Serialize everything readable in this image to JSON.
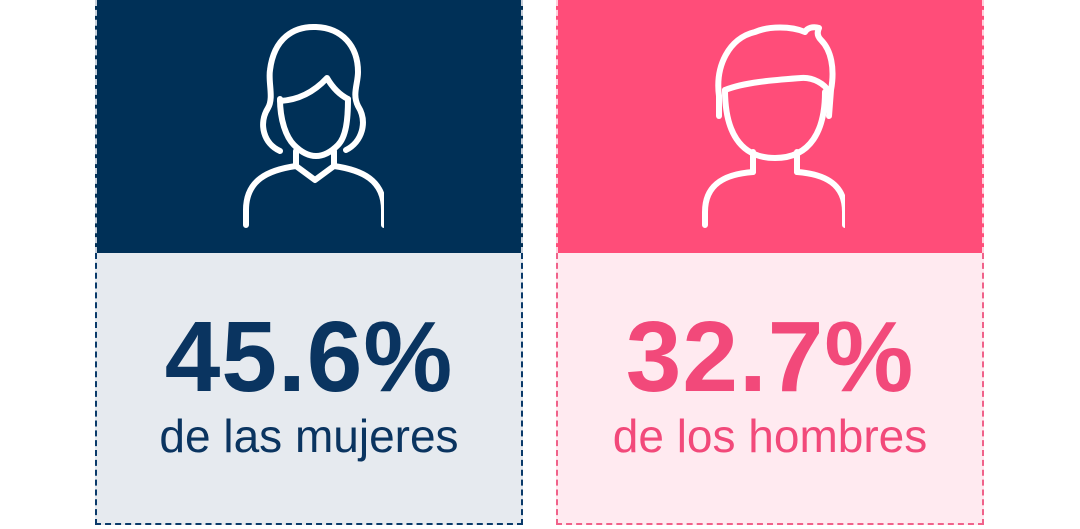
{
  "cards": [
    {
      "percent": "45.6%",
      "label": "de las mujeres",
      "icon": "woman-avatar-icon",
      "top_color": "#003057",
      "bottom_color": "#e6eaef",
      "text_color": "#0a3460"
    },
    {
      "percent": "32.7%",
      "label": "de los hombres",
      "icon": "man-avatar-icon",
      "top_color": "#ff4d79",
      "bottom_color": "#ffeaf0",
      "text_color": "#f2497a"
    }
  ]
}
